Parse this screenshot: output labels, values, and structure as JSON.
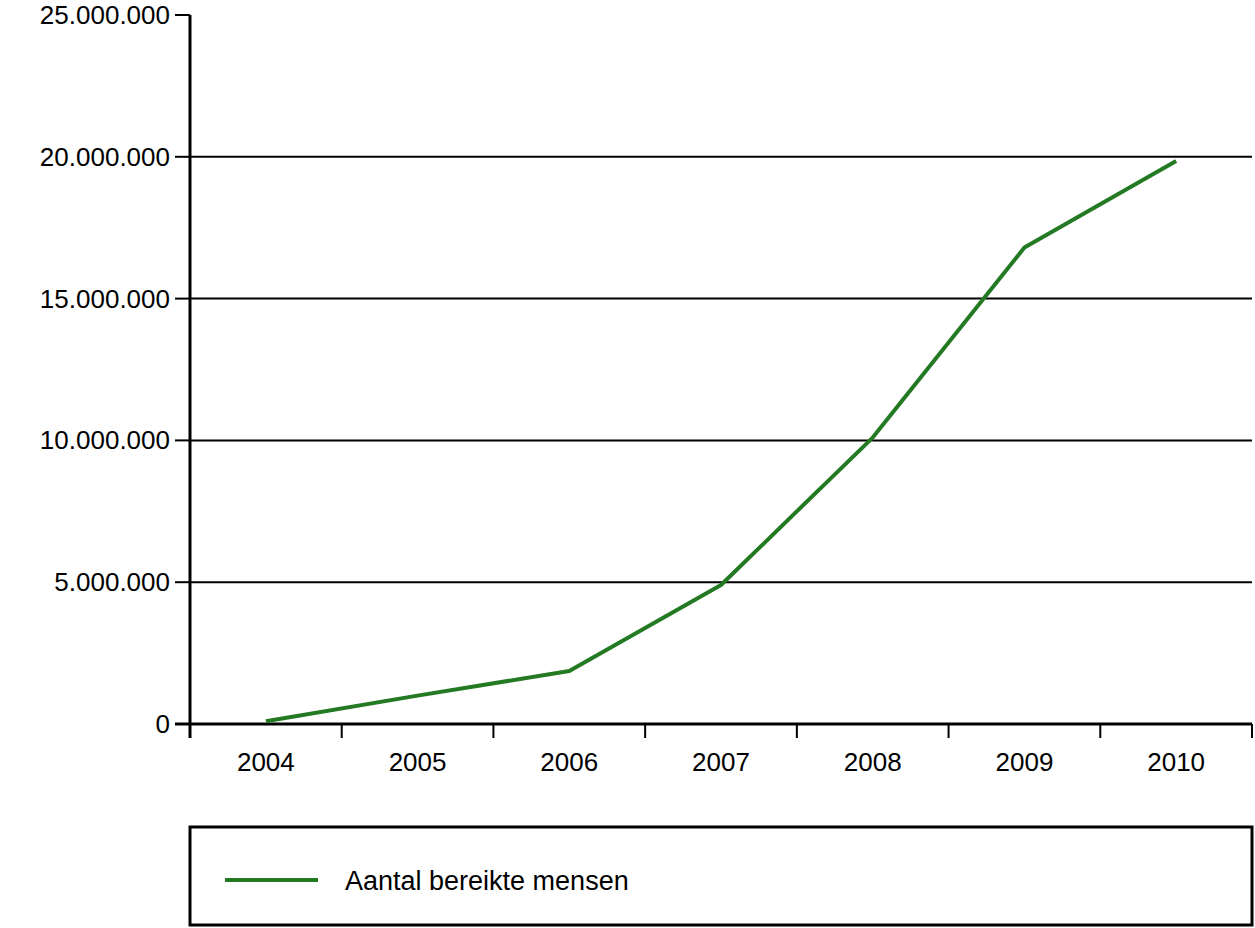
{
  "chart_data": {
    "type": "line",
    "categories": [
      "2004",
      "2005",
      "2006",
      "2007",
      "2008",
      "2009",
      "2010"
    ],
    "series": [
      {
        "name": "Aantal bereikte mensen",
        "color": "#237a23",
        "values": [
          100000,
          1000000,
          1870000,
          4900000,
          10100000,
          16800000,
          19850000
        ]
      }
    ],
    "ylim": [
      0,
      25000000
    ],
    "yticks": [
      0,
      {
        "value": 5000000,
        "label": "5.000.000"
      },
      {
        "value": 10000000,
        "label": "10.000.000"
      },
      {
        "value": 15000000,
        "label": "15.000.000"
      },
      {
        "value": 20000000,
        "label": "20.000.000"
      },
      {
        "value": 25000000,
        "label": "25.000.000"
      }
    ],
    "grid": true,
    "legend": "bottom"
  }
}
